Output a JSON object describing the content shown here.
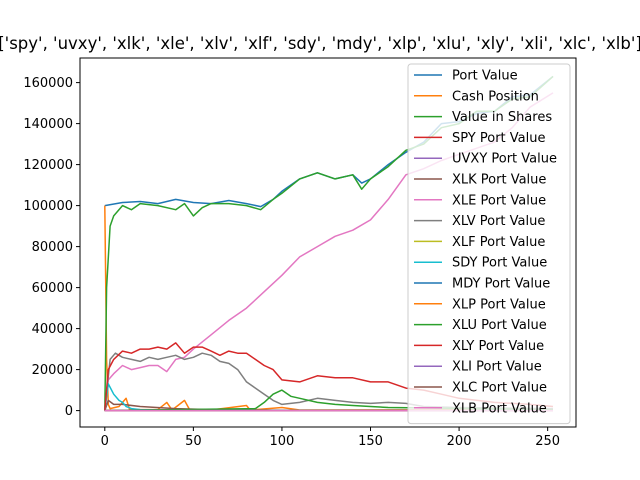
{
  "chart_data": {
    "type": "line",
    "title": "['spy', 'uvxy', 'xlk', 'xle', 'xlv', 'xlf', 'sdy', 'mdy', 'xlp', 'xlu', 'xly', 'xli', 'xlc', 'xlb']",
    "xlabel": "",
    "ylabel": "",
    "xlim": [
      -14,
      266
    ],
    "ylim": [
      -8000,
      172000
    ],
    "x_ticks": [
      0,
      50,
      100,
      150,
      200,
      250
    ],
    "y_ticks": [
      0,
      20000,
      40000,
      60000,
      80000,
      100000,
      120000,
      140000,
      160000
    ],
    "grid": false,
    "legend_position": "top-right",
    "series": [
      {
        "name": "Port Value",
        "color": "#1f77b4",
        "points": [
          [
            0,
            100000
          ],
          [
            10,
            101500
          ],
          [
            20,
            102000
          ],
          [
            30,
            101000
          ],
          [
            40,
            103000
          ],
          [
            50,
            101500
          ],
          [
            60,
            101000
          ],
          [
            70,
            102500
          ],
          [
            80,
            101000
          ],
          [
            88,
            99500
          ],
          [
            95,
            103000
          ],
          [
            100,
            107000
          ],
          [
            110,
            113000
          ],
          [
            120,
            116000
          ],
          [
            130,
            113000
          ],
          [
            140,
            115000
          ],
          [
            145,
            111000
          ],
          [
            150,
            113000
          ],
          [
            160,
            120000
          ],
          [
            170,
            126000
          ],
          [
            180,
            131000
          ],
          [
            190,
            140000
          ],
          [
            200,
            141000
          ],
          [
            210,
            145000
          ],
          [
            220,
            146000
          ],
          [
            230,
            153000
          ],
          [
            240,
            154000
          ],
          [
            253,
            163000
          ]
        ]
      },
      {
        "name": "Cash Position",
        "color": "#ff7f0e",
        "points": [
          [
            0,
            100000
          ],
          [
            1,
            25000
          ],
          [
            2,
            3000
          ],
          [
            3,
            1000
          ],
          [
            8,
            2000
          ],
          [
            12,
            6000
          ],
          [
            14,
            500
          ],
          [
            30,
            500
          ],
          [
            35,
            4000
          ],
          [
            38,
            300
          ],
          [
            45,
            5000
          ],
          [
            48,
            300
          ],
          [
            60,
            300
          ],
          [
            80,
            2500
          ],
          [
            82,
            300
          ],
          [
            100,
            1500
          ],
          [
            110,
            300
          ],
          [
            253,
            500
          ]
        ]
      },
      {
        "name": "Value in Shares",
        "color": "#2ca02c",
        "points": [
          [
            0,
            0
          ],
          [
            1,
            60000
          ],
          [
            3,
            90000
          ],
          [
            5,
            95000
          ],
          [
            10,
            100000
          ],
          [
            15,
            98000
          ],
          [
            20,
            101000
          ],
          [
            30,
            100000
          ],
          [
            40,
            98000
          ],
          [
            45,
            101000
          ],
          [
            50,
            95000
          ],
          [
            55,
            99000
          ],
          [
            60,
            101000
          ],
          [
            70,
            101000
          ],
          [
            80,
            100000
          ],
          [
            88,
            98000
          ],
          [
            95,
            103000
          ],
          [
            100,
            106000
          ],
          [
            110,
            113000
          ],
          [
            120,
            116000
          ],
          [
            130,
            113000
          ],
          [
            140,
            115000
          ],
          [
            145,
            108000
          ],
          [
            150,
            113000
          ],
          [
            160,
            119000
          ],
          [
            170,
            127000
          ],
          [
            180,
            130000
          ],
          [
            190,
            138000
          ],
          [
            200,
            140000
          ],
          [
            210,
            146000
          ],
          [
            220,
            146000
          ],
          [
            230,
            152000
          ],
          [
            240,
            153000
          ],
          [
            253,
            163000
          ]
        ]
      },
      {
        "name": "SPY Port Value",
        "color": "#d62728",
        "points": [
          [
            0,
            0
          ],
          [
            253,
            0
          ]
        ]
      },
      {
        "name": "UVXY Port Value",
        "color": "#9467bd",
        "points": [
          [
            0,
            0
          ],
          [
            253,
            0
          ]
        ]
      },
      {
        "name": "XLK Port Value",
        "color": "#8c564b",
        "points": [
          [
            0,
            0
          ],
          [
            2,
            5000
          ],
          [
            5,
            3000
          ],
          [
            10,
            3000
          ],
          [
            20,
            2000
          ],
          [
            40,
            1000
          ],
          [
            60,
            500
          ],
          [
            100,
            200
          ],
          [
            253,
            100
          ]
        ]
      },
      {
        "name": "XLE Port Value",
        "color": "#e377c2",
        "points": [
          [
            0,
            0
          ],
          [
            2,
            15000
          ],
          [
            5,
            18000
          ],
          [
            10,
            22000
          ],
          [
            15,
            20000
          ],
          [
            20,
            21000
          ],
          [
            25,
            22000
          ],
          [
            30,
            22000
          ],
          [
            35,
            19000
          ],
          [
            40,
            25000
          ],
          [
            45,
            26000
          ],
          [
            50,
            30000
          ],
          [
            60,
            37000
          ],
          [
            70,
            44000
          ],
          [
            80,
            50000
          ],
          [
            90,
            58000
          ],
          [
            100,
            66000
          ],
          [
            110,
            75000
          ],
          [
            120,
            80000
          ],
          [
            130,
            85000
          ],
          [
            140,
            88000
          ],
          [
            150,
            93000
          ],
          [
            160,
            103000
          ],
          [
            170,
            115000
          ],
          [
            180,
            118000
          ],
          [
            190,
            122000
          ],
          [
            200,
            125000
          ],
          [
            210,
            128000
          ],
          [
            220,
            131000
          ],
          [
            230,
            138000
          ],
          [
            240,
            148000
          ],
          [
            253,
            155000
          ]
        ]
      },
      {
        "name": "XLV Port Value",
        "color": "#7f7f7f",
        "points": [
          [
            0,
            0
          ],
          [
            3,
            25000
          ],
          [
            6,
            28000
          ],
          [
            10,
            26000
          ],
          [
            15,
            25000
          ],
          [
            20,
            24000
          ],
          [
            25,
            26000
          ],
          [
            30,
            25000
          ],
          [
            35,
            26000
          ],
          [
            40,
            27000
          ],
          [
            45,
            25000
          ],
          [
            50,
            26000
          ],
          [
            55,
            28000
          ],
          [
            60,
            27000
          ],
          [
            65,
            24000
          ],
          [
            70,
            23000
          ],
          [
            75,
            20000
          ],
          [
            80,
            14000
          ],
          [
            85,
            11000
          ],
          [
            90,
            8000
          ],
          [
            95,
            5000
          ],
          [
            100,
            3000
          ],
          [
            110,
            4000
          ],
          [
            120,
            6000
          ],
          [
            130,
            5000
          ],
          [
            140,
            4000
          ],
          [
            150,
            3500
          ],
          [
            160,
            4000
          ],
          [
            170,
            3500
          ],
          [
            180,
            2000
          ],
          [
            200,
            1500
          ],
          [
            253,
            1000
          ]
        ]
      },
      {
        "name": "XLF Port Value",
        "color": "#bcbd22",
        "points": [
          [
            0,
            0
          ],
          [
            253,
            0
          ]
        ]
      },
      {
        "name": "SDY Port Value",
        "color": "#17becf",
        "points": [
          [
            0,
            0
          ],
          [
            2,
            13000
          ],
          [
            5,
            8000
          ],
          [
            8,
            5000
          ],
          [
            10,
            4000
          ],
          [
            12,
            2000
          ],
          [
            15,
            1000
          ],
          [
            20,
            500
          ],
          [
            40,
            200
          ],
          [
            253,
            100
          ]
        ]
      },
      {
        "name": "MDY Port Value",
        "color": "#1f77b4",
        "points": [
          [
            0,
            0
          ],
          [
            253,
            0
          ]
        ]
      },
      {
        "name": "XLP Port Value",
        "color": "#ff7f0e",
        "points": [
          [
            0,
            0
          ],
          [
            253,
            0
          ]
        ]
      },
      {
        "name": "XLU Port Value",
        "color": "#2ca02c",
        "points": [
          [
            0,
            0
          ],
          [
            85,
            1000
          ],
          [
            90,
            4000
          ],
          [
            95,
            8000
          ],
          [
            100,
            10000
          ],
          [
            105,
            7000
          ],
          [
            110,
            6000
          ],
          [
            120,
            4000
          ],
          [
            130,
            3000
          ],
          [
            140,
            2500
          ],
          [
            150,
            2000
          ],
          [
            160,
            1500
          ],
          [
            253,
            500
          ]
        ]
      },
      {
        "name": "XLY Port Value",
        "color": "#d62728",
        "points": [
          [
            0,
            0
          ],
          [
            2,
            20000
          ],
          [
            5,
            25000
          ],
          [
            10,
            29000
          ],
          [
            15,
            28000
          ],
          [
            20,
            30000
          ],
          [
            25,
            30000
          ],
          [
            30,
            31000
          ],
          [
            35,
            30000
          ],
          [
            40,
            33000
          ],
          [
            45,
            28000
          ],
          [
            50,
            31000
          ],
          [
            55,
            31000
          ],
          [
            60,
            29000
          ],
          [
            65,
            27000
          ],
          [
            70,
            29000
          ],
          [
            75,
            28000
          ],
          [
            80,
            28000
          ],
          [
            85,
            25000
          ],
          [
            90,
            22000
          ],
          [
            95,
            20000
          ],
          [
            100,
            15000
          ],
          [
            110,
            14000
          ],
          [
            120,
            17000
          ],
          [
            130,
            16000
          ],
          [
            140,
            16000
          ],
          [
            150,
            14000
          ],
          [
            160,
            14000
          ],
          [
            170,
            11000
          ],
          [
            180,
            10000
          ],
          [
            190,
            8000
          ],
          [
            200,
            6000
          ],
          [
            220,
            4000
          ],
          [
            240,
            3000
          ],
          [
            253,
            2000
          ]
        ]
      },
      {
        "name": "XLI Port Value",
        "color": "#9467bd",
        "points": [
          [
            0,
            0
          ],
          [
            253,
            0
          ]
        ]
      },
      {
        "name": "XLC Port Value",
        "color": "#8c564b",
        "points": [
          [
            0,
            0
          ],
          [
            253,
            0
          ]
        ]
      },
      {
        "name": "XLB Port Value",
        "color": "#e377c2",
        "points": [
          [
            0,
            0
          ],
          [
            253,
            0
          ]
        ]
      }
    ]
  }
}
